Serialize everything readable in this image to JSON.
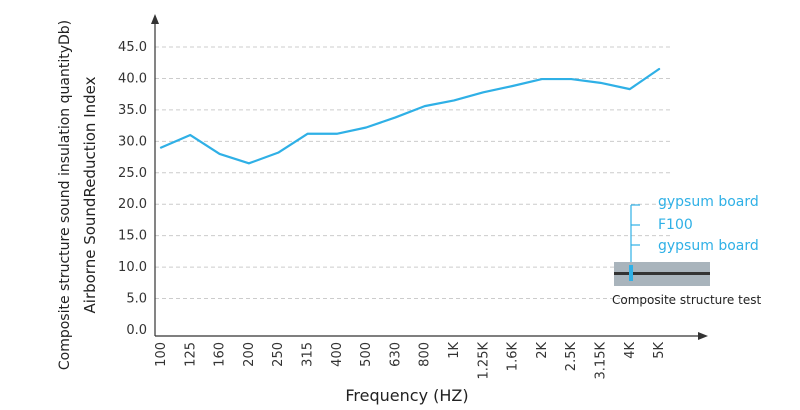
{
  "chart_data": {
    "type": "line",
    "categories": [
      "100",
      "125",
      "160",
      "200",
      "250",
      "315",
      "400",
      "500",
      "630",
      "800",
      "1K",
      "1.25K",
      "1.6K",
      "2K",
      "2.5K",
      "3.15K",
      "4K",
      "5K"
    ],
    "series": [
      {
        "values": [
          29.0,
          31.0,
          28.0,
          26.5,
          28.2,
          31.2,
          31.2,
          32.2,
          33.8,
          35.6,
          36.5,
          37.8,
          38.8,
          39.9,
          39.9,
          39.3,
          38.3,
          41.5
        ]
      }
    ],
    "yticks": [
      "0.0",
      "5.0",
      "10.0",
      "15.0",
      "20.0",
      "25.0",
      "30.0",
      "35.0",
      "40.0",
      "45.0"
    ],
    "ylim": [
      0,
      45
    ],
    "xlabel": "Frequency (HZ)",
    "ylabel_line1": "Composite structure sound insulation quantityDb)",
    "ylabel_line2": "Airborne SoundReduction Index",
    "grid": "horizontal-dashed",
    "legend": {
      "layers": [
        "gypsum board",
        "F100",
        "gypsum board"
      ],
      "caption": "Composite structure test"
    },
    "colors": {
      "line": "#2fb0e6",
      "axis": "#333333",
      "grid": "#cccccc",
      "panel": "#a9b4bc"
    }
  }
}
